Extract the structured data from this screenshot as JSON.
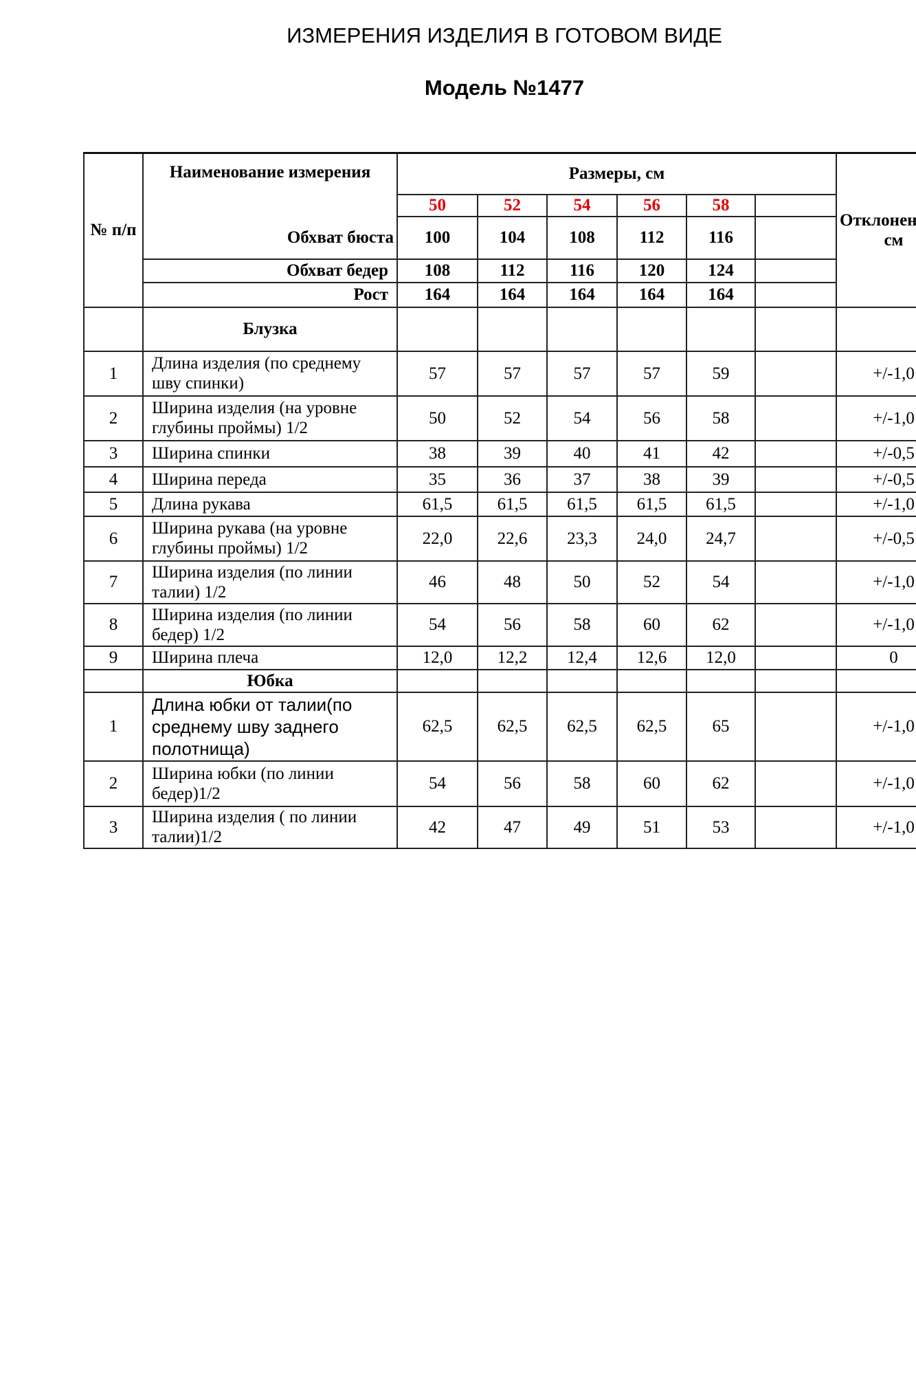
{
  "title": "ИЗМЕРЕНИЯ ИЗДЕЛИЯ В ГОТОВОМ ВИДЕ",
  "model": "Модель №1477",
  "header": {
    "num": "№ п/п",
    "name": "Наименование измерения",
    "sizes_label": "Размеры, см",
    "deviation": "Отклонение,+,- см",
    "sizes": [
      "50",
      "52",
      "54",
      "56",
      "58"
    ],
    "bust_label": "Обхват бюста",
    "bust": [
      "100",
      "104",
      "108",
      "112",
      "116"
    ],
    "hips_label": "Обхват бедер",
    "hips": [
      "108",
      "112",
      "116",
      "120",
      "124"
    ],
    "height_label": "Рост",
    "height": [
      "164",
      "164",
      "164",
      "164",
      "164"
    ],
    "size_color": "#e00000"
  },
  "sections": [
    {
      "title": "Блузка",
      "rows": [
        {
          "n": "1",
          "name": "Длина изделия (по среднему шву спинки)",
          "v": [
            "57",
            "57",
            "57",
            "57",
            "59"
          ],
          "dev": "+/-1,0"
        },
        {
          "n": "2",
          "name": "Ширина изделия (на уровне глубины проймы) 1/2",
          "v": [
            "50",
            "52",
            "54",
            "56",
            "58"
          ],
          "dev": "+/-1,0"
        },
        {
          "n": "3",
          "name": "Ширина спинки",
          "v": [
            "38",
            "39",
            "40",
            "41",
            "42"
          ],
          "dev": "+/-0,5"
        },
        {
          "n": "4",
          "name": "Ширина переда",
          "v": [
            "35",
            "36",
            "37",
            "38",
            "39"
          ],
          "dev": "+/-0,5"
        },
        {
          "n": "5",
          "name": "Длина рукава",
          "v": [
            "61,5",
            "61,5",
            "61,5",
            "61,5",
            "61,5"
          ],
          "dev": "+/-1,0"
        },
        {
          "n": "6",
          "name": "Ширина рукава (на уровне глубины проймы) 1/2",
          "v": [
            "22,0",
            "22,6",
            "23,3",
            "24,0",
            "24,7"
          ],
          "dev": "+/-0,5"
        },
        {
          "n": "7",
          "name": "Ширина изделия (по линии талии) 1/2",
          "v": [
            "46",
            "48",
            "50",
            "52",
            "54"
          ],
          "dev": "+/-1,0"
        },
        {
          "n": "8",
          "name": "Ширина изделия (по линии бедер) 1/2",
          "v": [
            "54",
            "56",
            "58",
            "60",
            "62"
          ],
          "dev": "+/-1,0"
        },
        {
          "n": "9",
          "name": "Ширина плеча",
          "v": [
            "12,0",
            "12,2",
            "12,4",
            "12,6",
            "12,0"
          ],
          "dev": "0"
        }
      ]
    },
    {
      "title": "Юбка",
      "rows": [
        {
          "n": "1",
          "name": "Длина юбки от талии(по среднему шву заднего полотнища)",
          "v": [
            "62,5",
            "62,5",
            "62,5",
            "62,5",
            "65"
          ],
          "dev": "+/-1,0"
        },
        {
          "n": "2",
          "name": "Ширина юбки (по линии бедер)1/2",
          "v": [
            "54",
            "56",
            "58",
            "60",
            "62"
          ],
          "dev": "+/-1,0"
        },
        {
          "n": "3",
          "name": "Ширина изделия ( по линии талии)1/2",
          "v": [
            "42",
            "47",
            "49",
            "51",
            "53"
          ],
          "dev": "+/-1,0"
        }
      ]
    }
  ]
}
